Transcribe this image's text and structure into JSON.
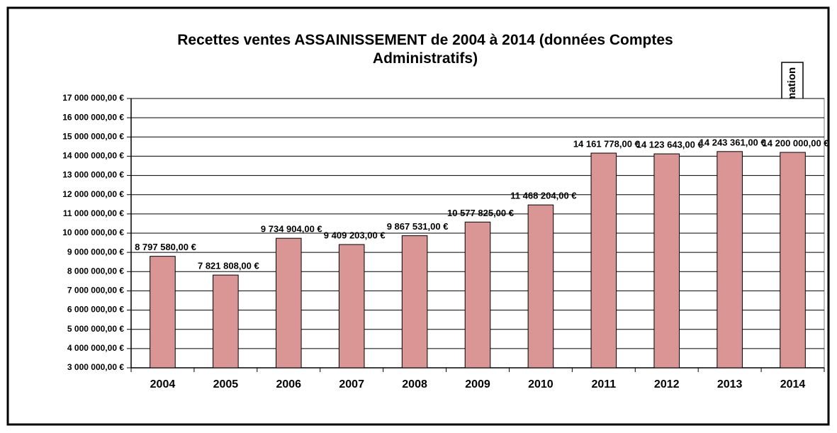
{
  "chart_data": {
    "type": "bar",
    "title": "Recettes ventes ASSAINISSEMENT de 2004 à 2014 (données Comptes Administratifs)",
    "annotation": "EStimation",
    "categories": [
      "2004",
      "2005",
      "2006",
      "2007",
      "2008",
      "2009",
      "2010",
      "2011",
      "2012",
      "2013",
      "2014"
    ],
    "values": [
      8797580,
      7821808,
      9734904,
      9409203,
      9867531,
      10577825,
      11468204,
      14161778,
      14123643,
      14243361,
      14200000
    ],
    "value_labels": [
      "8 797 580,00 €",
      "7 821 808,00 €",
      "9 734 904,00 €",
      "9 409 203,00 €",
      "9 867 531,00 €",
      "10 577 825,00 €",
      "11 468 204,00 €",
      "14 161 778,00 €",
      "14 123 643,00 €",
      "14 243 361,00 €",
      "14 200 000,00 €"
    ],
    "color": "#d99694",
    "ylim": [
      3000000,
      17000000
    ],
    "yticks": [
      {
        "value": 3000000,
        "label": "3 000 000,00 €"
      },
      {
        "value": 4000000,
        "label": "4 000 000,00 €"
      },
      {
        "value": 5000000,
        "label": "5 000 000,00 €"
      },
      {
        "value": 6000000,
        "label": "6 000 000,00 €"
      },
      {
        "value": 7000000,
        "label": "7 000 000,00 €"
      },
      {
        "value": 8000000,
        "label": "8 000 000,00 €"
      },
      {
        "value": 9000000,
        "label": "9 000 000,00 €"
      },
      {
        "value": 10000000,
        "label": "10 000 000,00 €"
      },
      {
        "value": 11000000,
        "label": "11 000 000,00 €"
      },
      {
        "value": 12000000,
        "label": "12 000 000,00 €"
      },
      {
        "value": 13000000,
        "label": "13 000 000,00 €"
      },
      {
        "value": 14000000,
        "label": "14 000 000,00 €"
      },
      {
        "value": 15000000,
        "label": "15 000 000,00 €"
      },
      {
        "value": 16000000,
        "label": "16 000 000,00 €"
      },
      {
        "value": 17000000,
        "label": "17 000 000,00 €"
      }
    ],
    "grid": true
  }
}
